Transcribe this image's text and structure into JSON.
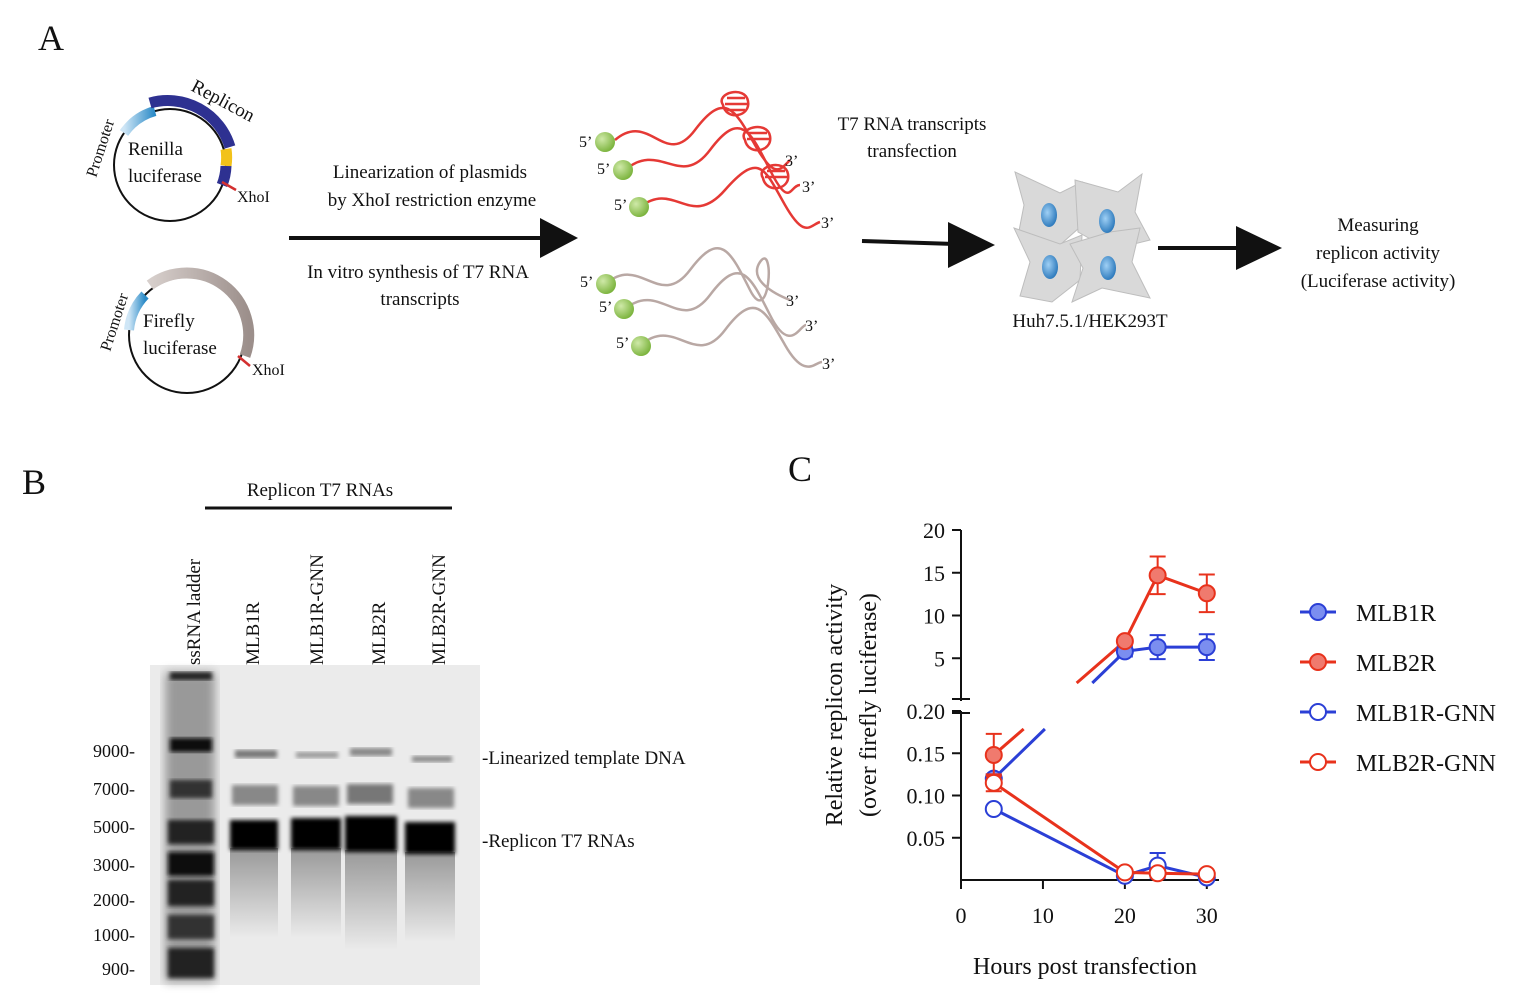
{
  "panels": {
    "a": {
      "letter": "A",
      "plasmid1": {
        "promoter": "Promoter",
        "replicon": "Replicon",
        "reporter_line1": "Renilla",
        "reporter_line2": "luciferase",
        "site": "XhoI"
      },
      "plasmid2": {
        "promoter": "Promoter",
        "reporter_line1": "Firefly",
        "reporter_line2": "luciferase",
        "site": "XhoI"
      },
      "step1_top_line1": "Linearization of plasmids",
      "step1_top_line2": "by XhoI restriction enzyme",
      "step1_bottom_line1": "In vitro synthesis of T7 RNA",
      "step1_bottom_line2": "transcripts",
      "five_prime": "5’",
      "three_prime": "3’",
      "step2_line1": "T7 RNA transcripts",
      "step2_line2": "transfection",
      "cells_label": "Huh7.5.1/HEK293T",
      "step3_line1": "Measuring",
      "step3_line2": "replicon activity",
      "step3_line3": "(Luciferase activity)",
      "colors": {
        "replicon_rna": "#e53935",
        "firefly_rna": "#b9a8a4",
        "cap": "#8fc34e",
        "plasmid_insert": "#2e3191",
        "promoter": "#2a8ac7",
        "cell": "#d9d9d9",
        "nucleus": "#3f8fd0"
      }
    },
    "b": {
      "letter": "B",
      "group_label": "Replicon T7 RNAs",
      "lanes": [
        "ssRNA ladder",
        "MLB1R",
        "MLB1R-GNN",
        "MLB2R",
        "MLB2R-GNN"
      ],
      "ladder_marks": [
        "9000-",
        "7000-",
        "5000-",
        "3000-",
        "2000-",
        "1000-",
        "900-"
      ],
      "band_labels": [
        "-Linearized template DNA",
        "-Replicon T7 RNAs"
      ]
    },
    "c": {
      "letter": "C"
    }
  },
  "chart_data": {
    "type": "line",
    "xlabel": "Hours post transfection",
    "ylabel_line1": "Relative replicon activity",
    "ylabel_line2": "(over firefly luciferase)",
    "x_ticks": [
      "0",
      "10",
      "20",
      "30"
    ],
    "xlim": [
      0,
      31
    ],
    "y_axis_broken": true,
    "y_lower_range": [
      0,
      0.2
    ],
    "y_upper_range": [
      0,
      20
    ],
    "y_lower_ticks": [
      "0.05",
      "0.10",
      "0.15",
      "0.20"
    ],
    "y_upper_ticks": [
      "5",
      "10",
      "15",
      "20"
    ],
    "legend_position": "right",
    "series": [
      {
        "name": "MLB1R",
        "color": "#2b3fd6",
        "fill": "#7b8ef0",
        "marker": "filled",
        "points": [
          {
            "x": 4,
            "y": 0.12,
            "err": 0.005,
            "seg": "low"
          },
          {
            "x": 20,
            "y": 5.8,
            "err": 0.6,
            "seg": "high"
          },
          {
            "x": 24,
            "y": 6.3,
            "err": 1.4,
            "seg": "high"
          },
          {
            "x": 30,
            "y": 6.3,
            "err": 1.5,
            "seg": "high"
          }
        ]
      },
      {
        "name": "MLB2R",
        "color": "#e8321c",
        "fill": "#f07a6e",
        "marker": "filled",
        "points": [
          {
            "x": 4,
            "y": 0.148,
            "err": 0.025,
            "seg": "low"
          },
          {
            "x": 20,
            "y": 7.0,
            "err": 0.4,
            "seg": "high"
          },
          {
            "x": 24,
            "y": 14.7,
            "err": 2.2,
            "seg": "high"
          },
          {
            "x": 30,
            "y": 12.6,
            "err": 2.2,
            "seg": "high"
          }
        ]
      },
      {
        "name": "MLB1R-GNN",
        "color": "#2b3fd6",
        "fill": "#ffffff",
        "marker": "open",
        "points": [
          {
            "x": 4,
            "y": 0.084,
            "err": 0.0,
            "seg": "low"
          },
          {
            "x": 20,
            "y": 0.005,
            "err": 0.002,
            "seg": "low"
          },
          {
            "x": 24,
            "y": 0.017,
            "err": 0.015,
            "seg": "low"
          },
          {
            "x": 30,
            "y": 0.003,
            "err": 0.002,
            "seg": "low"
          }
        ]
      },
      {
        "name": "MLB2R-GNN",
        "color": "#e8321c",
        "fill": "#ffffff",
        "marker": "open",
        "points": [
          {
            "x": 4,
            "y": 0.115,
            "err": 0.01,
            "seg": "low"
          },
          {
            "x": 20,
            "y": 0.009,
            "err": 0.003,
            "seg": "low"
          },
          {
            "x": 24,
            "y": 0.008,
            "err": 0.004,
            "seg": "low"
          },
          {
            "x": 30,
            "y": 0.007,
            "err": 0.003,
            "seg": "low"
          }
        ]
      }
    ]
  }
}
